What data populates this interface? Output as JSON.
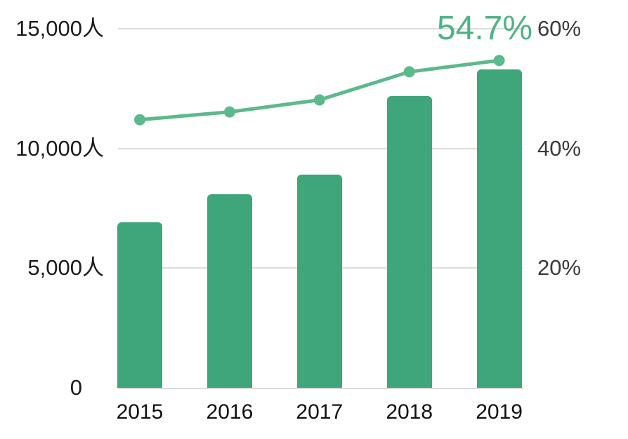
{
  "chart_data": {
    "type": "combo",
    "title": "",
    "categories": [
      "2015",
      "2016",
      "2017",
      "2018",
      "2019"
    ],
    "series": [
      {
        "name": "bar-series-people",
        "type": "bar",
        "axis": "left",
        "color": "#3EA67A",
        "values": [
          6900,
          8100,
          8900,
          12200,
          13300
        ]
      },
      {
        "name": "line-series-percent",
        "type": "line",
        "axis": "right",
        "color": "#5CB98C",
        "values": [
          44.8,
          46.1,
          48.1,
          52.8,
          54.7
        ]
      }
    ],
    "left_axis": {
      "range": [
        0,
        16200
      ],
      "ticks": [
        {
          "value": 0,
          "label": "0",
          "unit": ""
        },
        {
          "value": 5000,
          "label": "5,000",
          "unit": "人"
        },
        {
          "value": 10000,
          "label": "10,000",
          "unit": "人"
        },
        {
          "value": 15000,
          "label": "15,000",
          "unit": "人"
        }
      ]
    },
    "right_axis": {
      "range": [
        0,
        64.8
      ],
      "ticks": [
        {
          "value": 20,
          "label": "20%"
        },
        {
          "value": 40,
          "label": "40%"
        },
        {
          "value": 60,
          "label": "60%"
        }
      ]
    },
    "annotation": {
      "text": "54.7%",
      "color": "#4FB286",
      "attached_to": "2019"
    },
    "grid": true,
    "legend": "none",
    "colors": {
      "grid": "#DCDCDC",
      "baseline": "#D9D9D9",
      "left_axis_text": "#1A1A1A",
      "right_axis_text": "#3A3A3A",
      "x_axis_text": "#111111",
      "background": "#FFFFFF"
    }
  }
}
